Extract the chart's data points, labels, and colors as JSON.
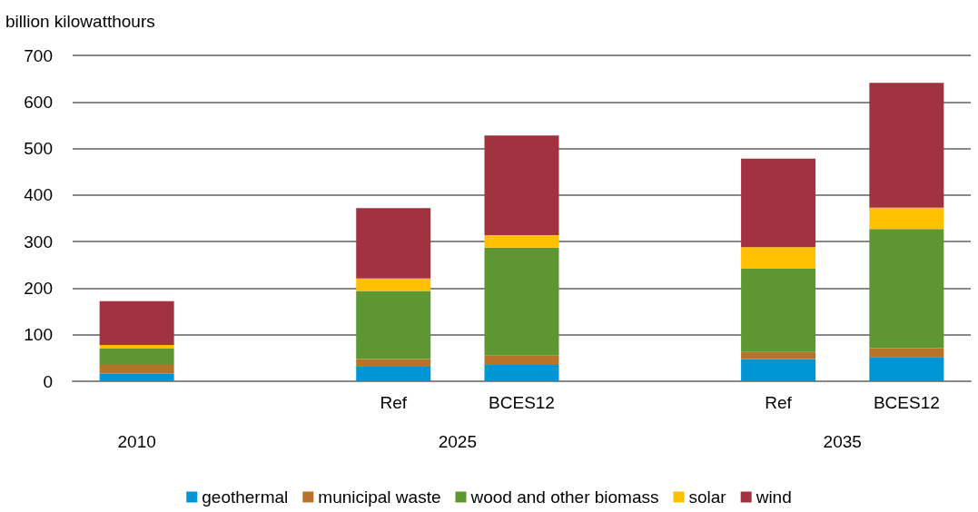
{
  "chart_data": {
    "type": "bar",
    "stacked": true,
    "ylabel": "billion kilowatthours",
    "categories": [
      null,
      null,
      "Ref",
      "BCES12",
      null,
      "Ref",
      "BCES12"
    ],
    "annotations": [
      "2010",
      "2025",
      "2035"
    ],
    "series": [
      {
        "name": "geothermal",
        "color": "#0096d6",
        "values": [
          16,
          null,
          31,
          35,
          null,
          48,
          52
        ]
      },
      {
        "name": "municipal waste",
        "color": "#b8722a",
        "values": [
          19,
          null,
          17,
          20,
          null,
          15,
          19
        ]
      },
      {
        "name": "wood and other biomass",
        "color": "#5e9732",
        "values": [
          35,
          null,
          146,
          232,
          null,
          179,
          256
        ]
      },
      {
        "name": "solar",
        "color": "#ffc000",
        "values": [
          8,
          null,
          27,
          27,
          null,
          46,
          46
        ]
      },
      {
        "name": "wind",
        "color": "#a23240",
        "values": [
          94,
          null,
          151,
          214,
          null,
          190,
          268
        ]
      }
    ],
    "ylim": [
      0,
      700
    ],
    "yticks": [
      0,
      100,
      200,
      300,
      400,
      500,
      600,
      700
    ],
    "grid": "y",
    "legend": "bottom"
  }
}
